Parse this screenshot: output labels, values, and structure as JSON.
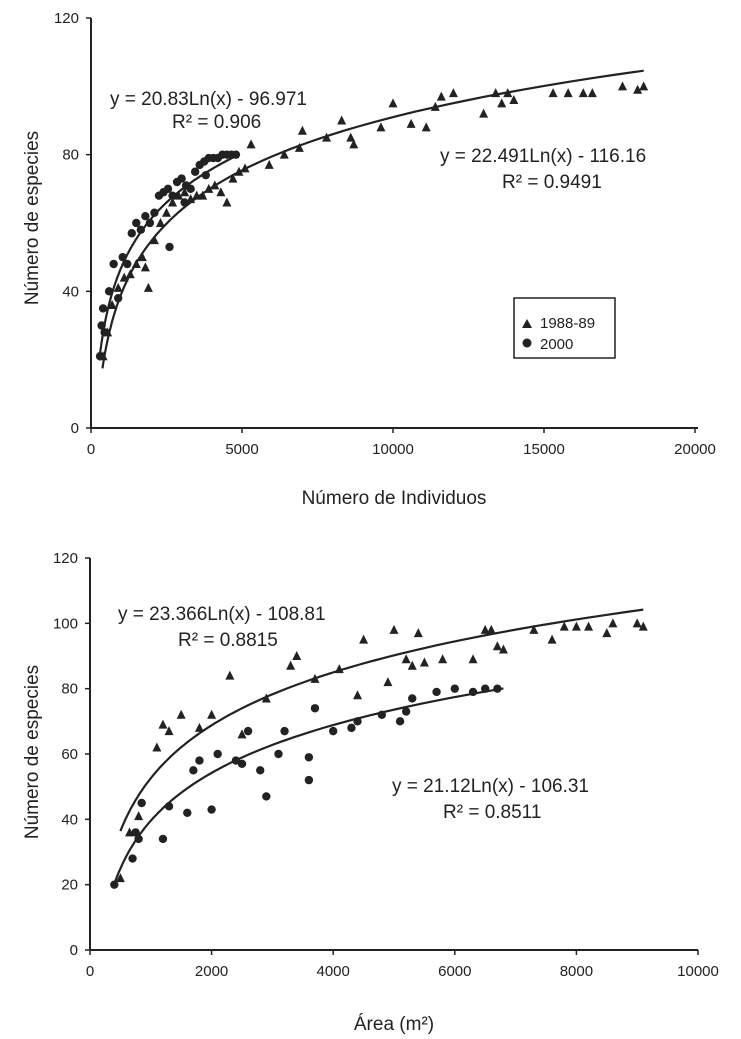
{
  "chart_data": [
    {
      "type": "scatter",
      "xlabel": "Número de Individuos",
      "ylabel": "Número de especies",
      "xlim": [
        0,
        20000
      ],
      "ylim": [
        0,
        120
      ],
      "x_ticks": [
        "0",
        "5000",
        "10000",
        "15000",
        "20000"
      ],
      "y_ticks": [
        "0",
        "40",
        "80",
        "120"
      ],
      "grid": false,
      "legend_placement": "right-center",
      "series": [
        {
          "name": "1988-89",
          "marker": "triangle",
          "points": [
            [
              400,
              21
            ],
            [
              550,
              28
            ],
            [
              700,
              36
            ],
            [
              900,
              41
            ],
            [
              1100,
              44
            ],
            [
              1300,
              45
            ],
            [
              1500,
              48
            ],
            [
              1700,
              50
            ],
            [
              1800,
              47
            ],
            [
              1900,
              41
            ],
            [
              2100,
              55
            ],
            [
              2300,
              60
            ],
            [
              2500,
              63
            ],
            [
              2700,
              66
            ],
            [
              2900,
              68
            ],
            [
              3100,
              69
            ],
            [
              3300,
              67
            ],
            [
              3500,
              68
            ],
            [
              3700,
              68
            ],
            [
              3900,
              70
            ],
            [
              4100,
              71
            ],
            [
              4300,
              69
            ],
            [
              4500,
              66
            ],
            [
              4700,
              73
            ],
            [
              4900,
              75
            ],
            [
              5100,
              76
            ],
            [
              5300,
              83
            ],
            [
              5900,
              77
            ],
            [
              6400,
              80
            ],
            [
              6900,
              82
            ],
            [
              7000,
              87
            ],
            [
              7800,
              85
            ],
            [
              8300,
              90
            ],
            [
              8600,
              85
            ],
            [
              8700,
              83
            ],
            [
              9600,
              88
            ],
            [
              10000,
              95
            ],
            [
              10600,
              89
            ],
            [
              11100,
              88
            ],
            [
              11400,
              94
            ],
            [
              11600,
              97
            ],
            [
              12000,
              98
            ],
            [
              13000,
              92
            ],
            [
              13400,
              98
            ],
            [
              13600,
              95
            ],
            [
              13800,
              98
            ],
            [
              14000,
              96
            ],
            [
              15300,
              98
            ],
            [
              15800,
              98
            ],
            [
              16300,
              98
            ],
            [
              16600,
              98
            ],
            [
              17600,
              100
            ],
            [
              18100,
              99
            ],
            [
              18300,
              100
            ]
          ]
        },
        {
          "name": "2000",
          "marker": "circle",
          "points": [
            [
              300,
              21
            ],
            [
              350,
              30
            ],
            [
              400,
              35
            ],
            [
              450,
              28
            ],
            [
              600,
              40
            ],
            [
              750,
              48
            ],
            [
              900,
              38
            ],
            [
              1050,
              50
            ],
            [
              1200,
              48
            ],
            [
              1350,
              57
            ],
            [
              1500,
              60
            ],
            [
              1650,
              58
            ],
            [
              1800,
              62
            ],
            [
              1950,
              60
            ],
            [
              2100,
              63
            ],
            [
              2250,
              68
            ],
            [
              2400,
              69
            ],
            [
              2550,
              70
            ],
            [
              2700,
              68
            ],
            [
              2850,
              72
            ],
            [
              3000,
              73
            ],
            [
              3150,
              71
            ],
            [
              3300,
              70
            ],
            [
              3450,
              75
            ],
            [
              3600,
              77
            ],
            [
              3750,
              78
            ],
            [
              3900,
              79
            ],
            [
              4050,
              79
            ],
            [
              4200,
              79
            ],
            [
              4350,
              80
            ],
            [
              4500,
              80
            ],
            [
              4650,
              80
            ],
            [
              4800,
              80
            ],
            [
              2600,
              53
            ],
            [
              3100,
              66
            ],
            [
              3800,
              74
            ]
          ]
        }
      ],
      "fits": [
        {
          "series": "2000",
          "a": 20.83,
          "b": -96.971,
          "x_range": [
            300,
            4800
          ],
          "equation": "y = 20.83Ln(x) - 96.971",
          "r2": "R² = 0.906"
        },
        {
          "series": "1988-89",
          "a": 22.491,
          "b": -116.16,
          "x_range": [
            380,
            18300
          ],
          "equation": "y = 22.491Ln(x) - 116.16",
          "r2": "R² = 0.9491"
        }
      ],
      "legend": [
        "1988-89",
        "2000"
      ]
    },
    {
      "type": "scatter",
      "xlabel": "Área (m²)",
      "ylabel": "Número de especies",
      "xlim": [
        0,
        10000
      ],
      "ylim": [
        0,
        120
      ],
      "x_ticks": [
        "0",
        "2000",
        "4000",
        "6000",
        "8000",
        "10000"
      ],
      "y_ticks": [
        "0",
        "20",
        "40",
        "60",
        "80",
        "100",
        "120"
      ],
      "grid": false,
      "series": [
        {
          "name": "1988-89",
          "marker": "triangle",
          "points": [
            [
              500,
              22
            ],
            [
              650,
              36
            ],
            [
              800,
              41
            ],
            [
              1100,
              62
            ],
            [
              1200,
              69
            ],
            [
              1300,
              67
            ],
            [
              1500,
              72
            ],
            [
              1800,
              68
            ],
            [
              2000,
              72
            ],
            [
              2300,
              84
            ],
            [
              2500,
              66
            ],
            [
              2900,
              77
            ],
            [
              3300,
              87
            ],
            [
              3400,
              90
            ],
            [
              3700,
              83
            ],
            [
              4100,
              86
            ],
            [
              4400,
              78
            ],
            [
              4500,
              95
            ],
            [
              4900,
              82
            ],
            [
              5000,
              98
            ],
            [
              5200,
              89
            ],
            [
              5300,
              87
            ],
            [
              5400,
              97
            ],
            [
              5500,
              88
            ],
            [
              5800,
              89
            ],
            [
              6300,
              89
            ],
            [
              6500,
              98
            ],
            [
              6600,
              98
            ],
            [
              6700,
              93
            ],
            [
              6800,
              92
            ],
            [
              7300,
              98
            ],
            [
              7600,
              95
            ],
            [
              7800,
              99
            ],
            [
              8000,
              99
            ],
            [
              8200,
              99
            ],
            [
              8500,
              97
            ],
            [
              8600,
              100
            ],
            [
              9000,
              100
            ],
            [
              9100,
              99
            ]
          ]
        },
        {
          "name": "2000",
          "marker": "circle",
          "points": [
            [
              400,
              20
            ],
            [
              700,
              28
            ],
            [
              750,
              36
            ],
            [
              800,
              34
            ],
            [
              850,
              45
            ],
            [
              1200,
              34
            ],
            [
              1300,
              44
            ],
            [
              1600,
              42
            ],
            [
              1700,
              55
            ],
            [
              1800,
              58
            ],
            [
              2000,
              43
            ],
            [
              2100,
              60
            ],
            [
              2500,
              57
            ],
            [
              2600,
              67
            ],
            [
              2800,
              55
            ],
            [
              2900,
              47
            ],
            [
              3100,
              60
            ],
            [
              3200,
              67
            ],
            [
              3600,
              52
            ],
            [
              3700,
              74
            ],
            [
              4000,
              67
            ],
            [
              4300,
              68
            ],
            [
              4400,
              70
            ],
            [
              4800,
              72
            ],
            [
              5100,
              70
            ],
            [
              5200,
              73
            ],
            [
              5300,
              77
            ],
            [
              5700,
              79
            ],
            [
              6000,
              80
            ],
            [
              6300,
              79
            ],
            [
              6500,
              80
            ],
            [
              6700,
              80
            ],
            [
              2400,
              58
            ],
            [
              3600,
              59
            ]
          ]
        }
      ],
      "fits": [
        {
          "series": "1988-89",
          "a": 23.366,
          "b": -108.81,
          "x_range": [
            500,
            9100
          ],
          "equation": "y = 23.366Ln(x) - 108.81",
          "r2": "R² = 0.8815"
        },
        {
          "series": "2000",
          "a": 21.12,
          "b": -106.31,
          "x_range": [
            400,
            6800
          ],
          "equation": "y = 21.12Ln(x) - 106.31",
          "r2": "R² = 0.8511"
        }
      ]
    }
  ]
}
